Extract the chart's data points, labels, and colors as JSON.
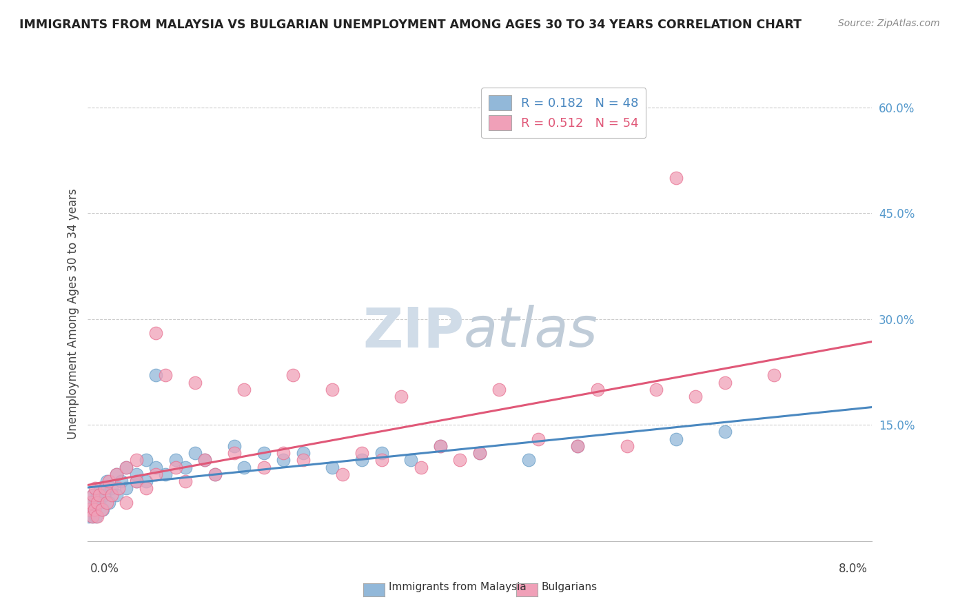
{
  "title": "IMMIGRANTS FROM MALAYSIA VS BULGARIAN UNEMPLOYMENT AMONG AGES 30 TO 34 YEARS CORRELATION CHART",
  "source": "Source: ZipAtlas.com",
  "ylabel": "Unemployment Among Ages 30 to 34 years",
  "right_ytick_vals": [
    0.0,
    0.15,
    0.3,
    0.45,
    0.6
  ],
  "right_ytick_labels": [
    "",
    "15.0%",
    "30.0%",
    "45.0%",
    "60.0%"
  ],
  "xmin": 0.0,
  "xmax": 0.08,
  "ymin": -0.015,
  "ymax": 0.63,
  "legend_entry1": "R = 0.182   N = 48",
  "legend_entry2": "R = 0.512   N = 54",
  "series1_name": "Immigrants from Malaysia",
  "series2_name": "Bulgarians",
  "series1_color": "#92b8d9",
  "series2_color": "#f0a0b8",
  "series1_edge": "#6a9fc8",
  "series2_edge": "#e87090",
  "series1_line_color": "#4a88c0",
  "series2_line_color": "#e05878",
  "watermark_zip": "ZIP",
  "watermark_atlas": "atlas",
  "watermark_color": "#d0dce8",
  "watermark_color2": "#c0ccd8",
  "legend_text_color1": "#4a88c0",
  "legend_text_color2": "#e05878",
  "right_axis_color": "#5599cc",
  "series1_x": [
    0.0002,
    0.0003,
    0.0004,
    0.0005,
    0.0006,
    0.0007,
    0.0008,
    0.0009,
    0.001,
    0.0012,
    0.0014,
    0.0016,
    0.0018,
    0.002,
    0.0022,
    0.0025,
    0.003,
    0.003,
    0.0035,
    0.004,
    0.004,
    0.005,
    0.005,
    0.006,
    0.006,
    0.007,
    0.007,
    0.008,
    0.009,
    0.01,
    0.011,
    0.012,
    0.013,
    0.015,
    0.016,
    0.018,
    0.02,
    0.022,
    0.025,
    0.028,
    0.03,
    0.033,
    0.036,
    0.04,
    0.045,
    0.05,
    0.06,
    0.065
  ],
  "series1_y": [
    0.02,
    0.03,
    0.04,
    0.02,
    0.05,
    0.03,
    0.04,
    0.02,
    0.05,
    0.04,
    0.06,
    0.03,
    0.05,
    0.07,
    0.04,
    0.06,
    0.08,
    0.05,
    0.07,
    0.06,
    0.09,
    0.07,
    0.08,
    0.1,
    0.07,
    0.22,
    0.09,
    0.08,
    0.1,
    0.09,
    0.11,
    0.1,
    0.08,
    0.12,
    0.09,
    0.11,
    0.1,
    0.11,
    0.09,
    0.1,
    0.11,
    0.1,
    0.12,
    0.11,
    0.1,
    0.12,
    0.13,
    0.14
  ],
  "series2_x": [
    0.0002,
    0.0003,
    0.0005,
    0.0006,
    0.0007,
    0.0008,
    0.001,
    0.001,
    0.0012,
    0.0015,
    0.0018,
    0.002,
    0.0022,
    0.0025,
    0.003,
    0.0032,
    0.004,
    0.004,
    0.005,
    0.005,
    0.006,
    0.007,
    0.007,
    0.008,
    0.009,
    0.01,
    0.011,
    0.012,
    0.013,
    0.015,
    0.016,
    0.018,
    0.02,
    0.021,
    0.022,
    0.025,
    0.026,
    0.028,
    0.03,
    0.032,
    0.034,
    0.036,
    0.038,
    0.04,
    0.042,
    0.046,
    0.05,
    0.052,
    0.055,
    0.058,
    0.06,
    0.062,
    0.065,
    0.07
  ],
  "series2_y": [
    0.03,
    0.04,
    0.02,
    0.05,
    0.03,
    0.06,
    0.04,
    0.02,
    0.05,
    0.03,
    0.06,
    0.04,
    0.07,
    0.05,
    0.08,
    0.06,
    0.09,
    0.04,
    0.1,
    0.07,
    0.06,
    0.28,
    0.08,
    0.22,
    0.09,
    0.07,
    0.21,
    0.1,
    0.08,
    0.11,
    0.2,
    0.09,
    0.11,
    0.22,
    0.1,
    0.2,
    0.08,
    0.11,
    0.1,
    0.19,
    0.09,
    0.12,
    0.1,
    0.11,
    0.2,
    0.13,
    0.12,
    0.2,
    0.12,
    0.2,
    0.5,
    0.19,
    0.21,
    0.22
  ]
}
